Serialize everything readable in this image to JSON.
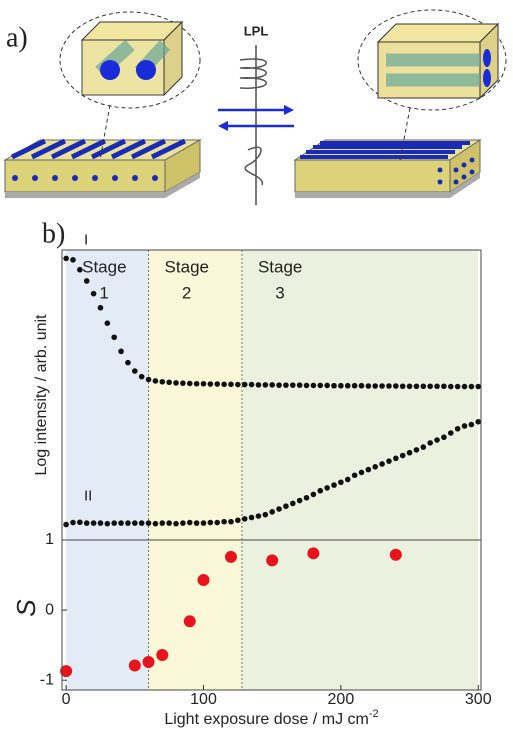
{
  "panel_a": {
    "label": "a)",
    "beam_label": "LPL"
  },
  "panel_b_label": "b)",
  "chart_data": [
    {
      "type": "scatter",
      "ylabel": "Log intensity / arb. unit",
      "xlim": [
        -3,
        302
      ],
      "ylim": [
        0,
        10.3
      ],
      "stages": [
        {
          "name": "Stage",
          "number": 1,
          "start": 0,
          "end": 60,
          "color": "#e3ebf7"
        },
        {
          "name": "Stage",
          "number": 2,
          "start": 60,
          "end": 128,
          "color": "#fbf8d9"
        },
        {
          "name": "Stage",
          "number": 3,
          "start": 128,
          "end": 300,
          "color": "#eaf2df"
        }
      ],
      "x": [
        0,
        5,
        10,
        15,
        20,
        25,
        30,
        35,
        40,
        45,
        50,
        55,
        60,
        65,
        70,
        75,
        80,
        85,
        90,
        95,
        100,
        105,
        110,
        115,
        120,
        125,
        130,
        135,
        140,
        145,
        150,
        155,
        160,
        165,
        170,
        175,
        180,
        185,
        190,
        195,
        200,
        205,
        210,
        215,
        220,
        225,
        230,
        235,
        240,
        245,
        250,
        255,
        260,
        265,
        270,
        275,
        280,
        285,
        290,
        295,
        300
      ],
      "series": [
        {
          "name": "I",
          "color": "#111111",
          "values": [
            10.0,
            9.95,
            9.6,
            9.2,
            8.75,
            8.25,
            7.7,
            7.2,
            6.7,
            6.3,
            6.0,
            5.8,
            5.7,
            5.65,
            5.62,
            5.6,
            5.58,
            5.57,
            5.56,
            5.55,
            5.55,
            5.54,
            5.54,
            5.53,
            5.53,
            5.52,
            5.52,
            5.52,
            5.51,
            5.51,
            5.51,
            5.5,
            5.5,
            5.5,
            5.5,
            5.49,
            5.49,
            5.49,
            5.49,
            5.48,
            5.48,
            5.48,
            5.48,
            5.48,
            5.47,
            5.47,
            5.47,
            5.47,
            5.47,
            5.46,
            5.46,
            5.46,
            5.46,
            5.46,
            5.46,
            5.46,
            5.45,
            5.45,
            5.45,
            5.45,
            5.45
          ]
        },
        {
          "name": "II",
          "color": "#111111",
          "values": [
            0.55,
            0.62,
            0.63,
            0.6,
            0.6,
            0.6,
            0.58,
            0.6,
            0.6,
            0.6,
            0.6,
            0.6,
            0.6,
            0.58,
            0.6,
            0.6,
            0.58,
            0.6,
            0.62,
            0.6,
            0.6,
            0.62,
            0.62,
            0.65,
            0.65,
            0.7,
            0.75,
            0.8,
            0.85,
            0.9,
            1.0,
            1.1,
            1.2,
            1.3,
            1.4,
            1.5,
            1.62,
            1.75,
            1.85,
            1.95,
            2.05,
            2.15,
            2.3,
            2.4,
            2.5,
            2.6,
            2.7,
            2.8,
            2.9,
            3.0,
            3.1,
            3.2,
            3.3,
            3.45,
            3.55,
            3.65,
            3.8,
            3.95,
            4.05,
            4.1,
            4.2
          ]
        }
      ]
    },
    {
      "type": "scatter",
      "ylabel": "S",
      "xlabel": "Light exposure dose / mJ cm",
      "xlabel_sup": "-2",
      "xlim": [
        -3,
        302
      ],
      "xticks": [
        0,
        100,
        200,
        300
      ],
      "ylim": [
        -1.14,
        1
      ],
      "yticks": [
        1,
        0,
        -1
      ],
      "hline": 1,
      "x": [
        0,
        50,
        60,
        70,
        90,
        100,
        120,
        150,
        180,
        240
      ],
      "values": [
        -0.87,
        -0.79,
        -0.74,
        -0.64,
        -0.16,
        0.43,
        0.76,
        0.71,
        0.81,
        0.79
      ],
      "color": "#e8141c"
    }
  ]
}
